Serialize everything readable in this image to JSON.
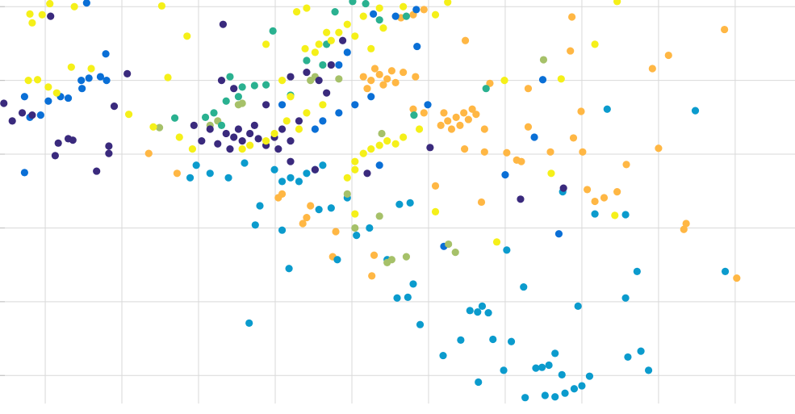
{
  "chart_data": {
    "type": "scatter",
    "grid": true,
    "xlim": [
      0.41,
      10.78
    ],
    "ylim": [
      -0.38,
      5.09
    ],
    "xticks": [
      1,
      2,
      3,
      4,
      5,
      6,
      7,
      8,
      9,
      10
    ],
    "yticks": [
      0,
      1,
      2,
      3,
      4,
      5
    ],
    "series": [
      {
        "color": "#ffb744",
        "x": [
          2.35,
          2.72,
          4.09,
          4.04,
          4.41,
          4.36,
          4.46,
          4.79,
          4.75,
          5.29,
          5.26,
          5.15,
          5.25,
          5.36,
          5.46,
          5.57,
          5.41,
          5.3,
          5.52,
          5.67,
          5.2,
          5.83,
          5.64,
          5.8,
          5.94,
          6.16,
          6.25,
          6.36,
          6.46,
          6.57,
          6.3,
          6.41,
          6.52,
          6.62,
          6.2,
          6.73,
          6.48,
          6.8,
          5.94,
          5.8,
          6.69,
          7.15,
          7.21,
          7.3,
          7.3,
          7.59,
          7.87,
          7.85,
          7.99,
          7.89,
          8.01,
          8.07,
          8.17,
          8.29,
          8.46,
          8.58,
          8.92,
          9.13,
          9.0,
          9.36,
          9.33,
          9.86,
          10.02,
          6.47,
          6.73,
          6.09,
          7.02
        ],
        "y": [
          3.01,
          2.74,
          2.46,
          2.41,
          2.14,
          2.06,
          2.3,
          1.95,
          1.61,
          1.63,
          1.35,
          4.05,
          4.0,
          4.08,
          4.02,
          3.97,
          3.94,
          4.16,
          4.13,
          4.11,
          3.89,
          4.05,
          4.85,
          4.89,
          4.96,
          3.39,
          3.45,
          3.5,
          3.56,
          3.61,
          3.34,
          3.39,
          3.47,
          3.54,
          3.56,
          3.34,
          4.54,
          3.96,
          3.56,
          3.61,
          2.35,
          2.92,
          2.9,
          3.37,
          3.89,
          3.03,
          4.86,
          4.4,
          3.58,
          3.22,
          3.03,
          2.52,
          2.36,
          2.41,
          2.49,
          2.86,
          4.16,
          4.34,
          3.08,
          2.06,
          1.98,
          4.69,
          1.32,
          3.07,
          3.03,
          2.57,
          3.02
        ]
      },
      {
        "color": "#0b9bcd",
        "x": [
          2.97,
          2.89,
          3.15,
          3.39,
          3.6,
          3.99,
          4.2,
          4.31,
          4.41,
          4.52,
          4.62,
          4.09,
          3.8,
          3.74,
          4.09,
          4.18,
          3.66,
          4.57,
          4.73,
          4.94,
          5.06,
          4.81,
          5.23,
          5.62,
          5.76,
          5.46,
          5.8,
          5.73,
          5.59,
          5.89,
          6.19,
          6.42,
          6.54,
          6.64,
          6.7,
          6.78,
          6.84,
          6.65,
          6.98,
          7.08,
          7.24,
          7.02,
          7.26,
          7.4,
          7.48,
          7.57,
          7.65,
          7.74,
          7.52,
          7.65,
          7.78,
          7.9,
          8.0,
          8.1,
          7.95,
          8.17,
          8.57,
          8.57,
          8.72,
          8.77,
          8.6,
          8.87,
          8.33,
          9.48,
          9.87,
          7.75
        ],
        "y": [
          2.85,
          2.68,
          2.74,
          2.68,
          2.88,
          2.79,
          2.68,
          2.63,
          2.74,
          2.79,
          2.85,
          2.63,
          2.3,
          2.04,
          1.97,
          1.45,
          0.71,
          2.25,
          2.27,
          2.41,
          1.9,
          1.57,
          2.0,
          2.32,
          2.34,
          1.57,
          1.24,
          1.06,
          1.05,
          0.69,
          0.27,
          0.48,
          0.88,
          0.86,
          0.94,
          0.85,
          0.49,
          -0.09,
          0.07,
          0.46,
          1.2,
          1.7,
          -0.3,
          0.1,
          0.11,
          0.14,
          0.3,
          0.01,
          -0.27,
          -0.29,
          -0.24,
          -0.18,
          -0.14,
          -0.01,
          0.94,
          2.19,
          2.18,
          1.05,
          1.41,
          0.33,
          0.25,
          0.07,
          3.61,
          3.59,
          1.41,
          2.49
        ]
      },
      {
        "color": "#0a6fd6",
        "x": [
          1.54,
          1.79,
          0.73,
          0.8,
          0.94,
          1.04,
          1.2,
          1.3,
          1.47,
          1.57,
          1.72,
          1.8,
          1.48,
          0.73,
          5.28,
          5.57,
          5.84,
          5.85,
          4.94,
          4.83,
          5.04,
          4.83,
          4.62,
          4.52,
          5.25,
          7.49,
          7.38,
          7.0,
          7.7,
          5.99,
          5.36,
          6.2,
          4.09
        ],
        "y": [
          5.05,
          4.36,
          3.78,
          3.5,
          3.53,
          3.72,
          3.78,
          3.76,
          4.0,
          4.03,
          4.05,
          4.0,
          3.89,
          2.75,
          4.9,
          4.87,
          4.96,
          4.46,
          4.38,
          4.21,
          3.67,
          3.56,
          3.45,
          3.34,
          3.78,
          4.01,
          3.23,
          2.72,
          1.92,
          3.67,
          2.85,
          1.75,
          3.67
        ]
      },
      {
        "color": "#a6c169",
        "x": [
          2.49,
          3.15,
          3.25,
          3.52,
          3.57,
          4.46,
          4.52,
          4.83,
          4.94,
          5.36,
          5.46,
          5.52,
          5.71,
          6.26,
          6.35,
          7.5,
          5.39,
          5.04
        ],
        "y": [
          3.36,
          3.39,
          3.45,
          3.67,
          3.69,
          4.0,
          4.05,
          4.02,
          2.46,
          2.16,
          1.53,
          1.57,
          1.61,
          1.78,
          1.67,
          4.28,
          3.28,
          2.0
        ]
      },
      {
        "color": "#2ab190",
        "x": [
          2.69,
          3.2,
          3.36,
          3.52,
          3.41,
          3.57,
          3.73,
          3.88,
          3.97,
          4.2,
          4.41,
          4.62,
          4.78,
          5.01,
          5.18,
          5.36,
          5.71,
          5.81,
          6.75,
          3.3,
          4.67,
          3.09
        ],
        "y": [
          3.49,
          3.56,
          3.72,
          3.78,
          4.05,
          3.91,
          3.93,
          3.94,
          4.67,
          3.8,
          4.27,
          4.21,
          4.93,
          5.07,
          5.04,
          4.82,
          4.87,
          3.53,
          3.89,
          3.39,
          4.49,
          3.5
        ]
      },
      {
        "color": "#3a2a7d",
        "x": [
          0.46,
          0.57,
          0.7,
          0.83,
          1.07,
          1.13,
          1.17,
          1.3,
          1.36,
          1.67,
          1.83,
          1.83,
          1.9,
          2.07,
          3.32,
          3.36,
          3.46,
          3.57,
          3.67,
          3.78,
          3.88,
          3.99,
          4.09,
          4.2,
          4.31,
          3.25,
          3.41,
          3.15,
          3.04,
          2.94,
          3.3,
          3.46,
          3.88,
          4.2,
          4.41,
          4.57,
          4.67,
          4.73,
          4.88,
          4.2,
          4.52,
          5.2,
          6.02,
          7.2,
          7.76,
          3.73,
          4.04,
          3.52
        ],
        "y": [
          3.69,
          3.45,
          3.56,
          3.53,
          4.87,
          2.98,
          3.15,
          3.21,
          3.19,
          2.77,
          3.11,
          3.01,
          3.65,
          4.09,
          4.76,
          3.28,
          3.23,
          3.18,
          3.28,
          3.21,
          3.12,
          3.23,
          3.34,
          3.18,
          3.45,
          3.14,
          3.07,
          3.34,
          3.18,
          3.39,
          4.0,
          3.89,
          3.67,
          4.05,
          4.11,
          4.0,
          3.83,
          4.21,
          4.54,
          2.9,
          2.79,
          2.74,
          3.09,
          2.39,
          2.54,
          3.39,
          3.07,
          3.34
        ]
      },
      {
        "color": "#f5f019",
        "x": [
          0.8,
          0.96,
          1.06,
          0.83,
          1.38,
          2.52,
          2.85,
          0.78,
          0.9,
          1.04,
          1.15,
          1.34,
          1.6,
          2.09,
          2.41,
          2.6,
          4.28,
          4.41,
          4.39,
          4.57,
          4.73,
          4.83,
          4.94,
          5.04,
          5.15,
          5.36,
          5.67,
          6.09,
          6.25,
          8.46,
          8.17,
          7.73,
          6.99,
          3.88,
          4.09,
          4.2,
          4.15,
          4.31,
          4.41,
          4.62,
          3.88,
          3.67,
          3.57,
          5.04,
          5.15,
          5.25,
          5.36,
          5.46,
          5.57,
          5.67,
          5.04,
          4.94,
          5.88,
          6.09,
          6.89,
          7.6,
          8.43,
          5.04,
          2.92,
          2.75,
          3.99,
          4.52,
          4.67,
          5.25,
          5.41
        ],
        "y": [
          4.9,
          4.89,
          5.04,
          4.78,
          5.0,
          5.01,
          4.6,
          4.0,
          4.01,
          3.91,
          3.83,
          4.18,
          4.16,
          3.54,
          3.37,
          4.04,
          4.93,
          4.98,
          4.43,
          4.49,
          4.54,
          4.65,
          4.76,
          4.6,
          4.87,
          4.98,
          5.0,
          4.89,
          5.06,
          5.07,
          4.49,
          4.02,
          4.0,
          4.49,
          4.0,
          3.78,
          3.45,
          3.34,
          3.56,
          3.67,
          3.18,
          3.12,
          3.07,
          2.9,
          3.01,
          3.07,
          3.12,
          3.18,
          3.14,
          3.23,
          2.79,
          2.68,
          3.34,
          2.22,
          1.81,
          2.74,
          2.17,
          2.19,
          3.07,
          3.23,
          3.28,
          4.38,
          4.65,
          4.43,
          4.71
        ]
      }
    ]
  }
}
